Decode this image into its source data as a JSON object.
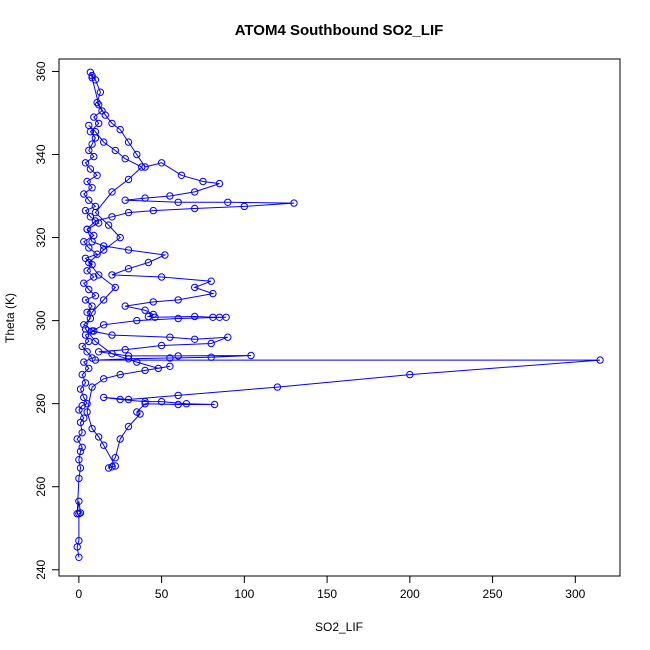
{
  "chart_data": {
    "type": "line",
    "title": "ATOM4 Southbound SO2_LIF",
    "xlabel": "SO2_LIF",
    "ylabel": "Theta (K)",
    "xlim": [
      -12,
      327
    ],
    "ylim": [
      238.5,
      363
    ],
    "xticks": [
      0,
      50,
      100,
      150,
      200,
      250,
      300
    ],
    "yticks": [
      240,
      260,
      280,
      300,
      320,
      340,
      360
    ],
    "grid": false,
    "marker": "open-circle",
    "color": "#0000ff",
    "series": [
      {
        "points": [
          [
            0,
            243
          ],
          [
            -1,
            245.5
          ],
          [
            0,
            247
          ],
          [
            0,
            253.5
          ],
          [
            1,
            253.7
          ],
          [
            0,
            256.5
          ],
          [
            -1,
            253.5
          ],
          [
            0,
            262
          ],
          [
            1,
            264.5
          ],
          [
            0,
            266.5
          ],
          [
            1,
            268.5
          ],
          [
            2,
            269.5
          ],
          [
            -1,
            271.5
          ],
          [
            2,
            273
          ],
          [
            1,
            275.5
          ],
          [
            3,
            276.5
          ],
          [
            0,
            278.5
          ],
          [
            2,
            279.5
          ],
          [
            5,
            280
          ],
          [
            3,
            281.5
          ],
          [
            1,
            283.5
          ],
          [
            4,
            285
          ],
          [
            2,
            287
          ],
          [
            6,
            288.5
          ],
          [
            3,
            290
          ],
          [
            8,
            291
          ],
          [
            5,
            292.5
          ],
          [
            2,
            293.8
          ],
          [
            6,
            295
          ],
          [
            4,
            296.5
          ],
          [
            9,
            297.5
          ],
          [
            3,
            299
          ],
          [
            7,
            300.5
          ],
          [
            5,
            302
          ],
          [
            8,
            303.5
          ],
          [
            4,
            305
          ],
          [
            10,
            306
          ],
          [
            6,
            307.5
          ],
          [
            3,
            309
          ],
          [
            9,
            310.5
          ],
          [
            5,
            312
          ],
          [
            8,
            313.5
          ],
          [
            4,
            315
          ],
          [
            11,
            316
          ],
          [
            6,
            317.5
          ],
          [
            3,
            319
          ],
          [
            9,
            320.5
          ],
          [
            5,
            322
          ],
          [
            12,
            323.5
          ],
          [
            7,
            325
          ],
          [
            4,
            326.5
          ],
          [
            10,
            327.5
          ],
          [
            6,
            329
          ],
          [
            3,
            330.5
          ],
          [
            8,
            332
          ],
          [
            5,
            333.5
          ],
          [
            11,
            335
          ],
          [
            7,
            336.5
          ],
          [
            4,
            338
          ],
          [
            9,
            339.5
          ],
          [
            6,
            341
          ],
          [
            8,
            342.5
          ],
          [
            10,
            344
          ],
          [
            7,
            345.5
          ],
          [
            12,
            347.5
          ],
          [
            9,
            349
          ],
          [
            14,
            350.5
          ],
          [
            11,
            352.5
          ],
          [
            13,
            355
          ],
          [
            10,
            358
          ],
          [
            8,
            359
          ],
          [
            7,
            359.8
          ],
          [
            8,
            358.5
          ],
          [
            12,
            352
          ],
          [
            16,
            349.5
          ],
          [
            20,
            347.5
          ],
          [
            25,
            346
          ],
          [
            30,
            343
          ],
          [
            35,
            340
          ],
          [
            40,
            337
          ],
          [
            50,
            338
          ],
          [
            62,
            335
          ],
          [
            75,
            333.5
          ],
          [
            85,
            333
          ],
          [
            70,
            331
          ],
          [
            55,
            330
          ],
          [
            40,
            329.5
          ],
          [
            28,
            329
          ],
          [
            60,
            328.5
          ],
          [
            90,
            328.5
          ],
          [
            130,
            328.3
          ],
          [
            100,
            327.5
          ],
          [
            70,
            327
          ],
          [
            45,
            326.5
          ],
          [
            30,
            326
          ],
          [
            20,
            325
          ],
          [
            10,
            324
          ],
          [
            5,
            322
          ],
          [
            8,
            319
          ],
          [
            15,
            318
          ],
          [
            30,
            317
          ],
          [
            52,
            315.8
          ],
          [
            42,
            314
          ],
          [
            30,
            312.5
          ],
          [
            20,
            311
          ],
          [
            50,
            310.5
          ],
          [
            80,
            309.5
          ],
          [
            70,
            308
          ],
          [
            81,
            306.5
          ],
          [
            60,
            305
          ],
          [
            45,
            304.5
          ],
          [
            28,
            303.5
          ],
          [
            40,
            302.5
          ],
          [
            45,
            301.5
          ],
          [
            42,
            301
          ],
          [
            46,
            300.8
          ],
          [
            70,
            301
          ],
          [
            81,
            300.8
          ],
          [
            85,
            300.8
          ],
          [
            89,
            300.8
          ],
          [
            60,
            300.5
          ],
          [
            35,
            300
          ],
          [
            15,
            299
          ],
          [
            8,
            297.5
          ],
          [
            20,
            296.5
          ],
          [
            55,
            296
          ],
          [
            70,
            295.5
          ],
          [
            90,
            296
          ],
          [
            80,
            294.5
          ],
          [
            50,
            294
          ],
          [
            28,
            293
          ],
          [
            12,
            292.5
          ],
          [
            30,
            291.5
          ],
          [
            60,
            291.5
          ],
          [
            104,
            291.6
          ],
          [
            80,
            291.2
          ],
          [
            55,
            291
          ],
          [
            30,
            290.8
          ],
          [
            10,
            290.5
          ],
          [
            315,
            290.5
          ],
          [
            200,
            287
          ],
          [
            120,
            284
          ],
          [
            60,
            282
          ],
          [
            30,
            281
          ],
          [
            15,
            281.5
          ],
          [
            25,
            281
          ],
          [
            40,
            280.5
          ],
          [
            50,
            280.5
          ],
          [
            65,
            280
          ],
          [
            82,
            279.8
          ],
          [
            60,
            279.8
          ],
          [
            40,
            280
          ],
          [
            35,
            278
          ],
          [
            37,
            277.5
          ],
          [
            30,
            274.5
          ],
          [
            25,
            271.5
          ],
          [
            22,
            267
          ],
          [
            18,
            264.5
          ],
          [
            20,
            264.8
          ],
          [
            22,
            265
          ],
          [
            15,
            270
          ],
          [
            12,
            272
          ],
          [
            8,
            274
          ],
          [
            5,
            278
          ],
          [
            8,
            284
          ],
          [
            15,
            286
          ],
          [
            25,
            287
          ],
          [
            40,
            288
          ],
          [
            55,
            289
          ],
          [
            48,
            288.5
          ],
          [
            35,
            290
          ],
          [
            20,
            292
          ],
          [
            10,
            295
          ],
          [
            4,
            298
          ],
          [
            8,
            302
          ],
          [
            15,
            305
          ],
          [
            22,
            308
          ],
          [
            12,
            311
          ],
          [
            6,
            314
          ],
          [
            15,
            317
          ],
          [
            25,
            320
          ],
          [
            18,
            323
          ],
          [
            10,
            326
          ],
          [
            20,
            331
          ],
          [
            30,
            334
          ],
          [
            38,
            337
          ],
          [
            28,
            339
          ],
          [
            22,
            341
          ],
          [
            15,
            343
          ],
          [
            10,
            345.5
          ],
          [
            6,
            347
          ]
        ]
      }
    ]
  }
}
